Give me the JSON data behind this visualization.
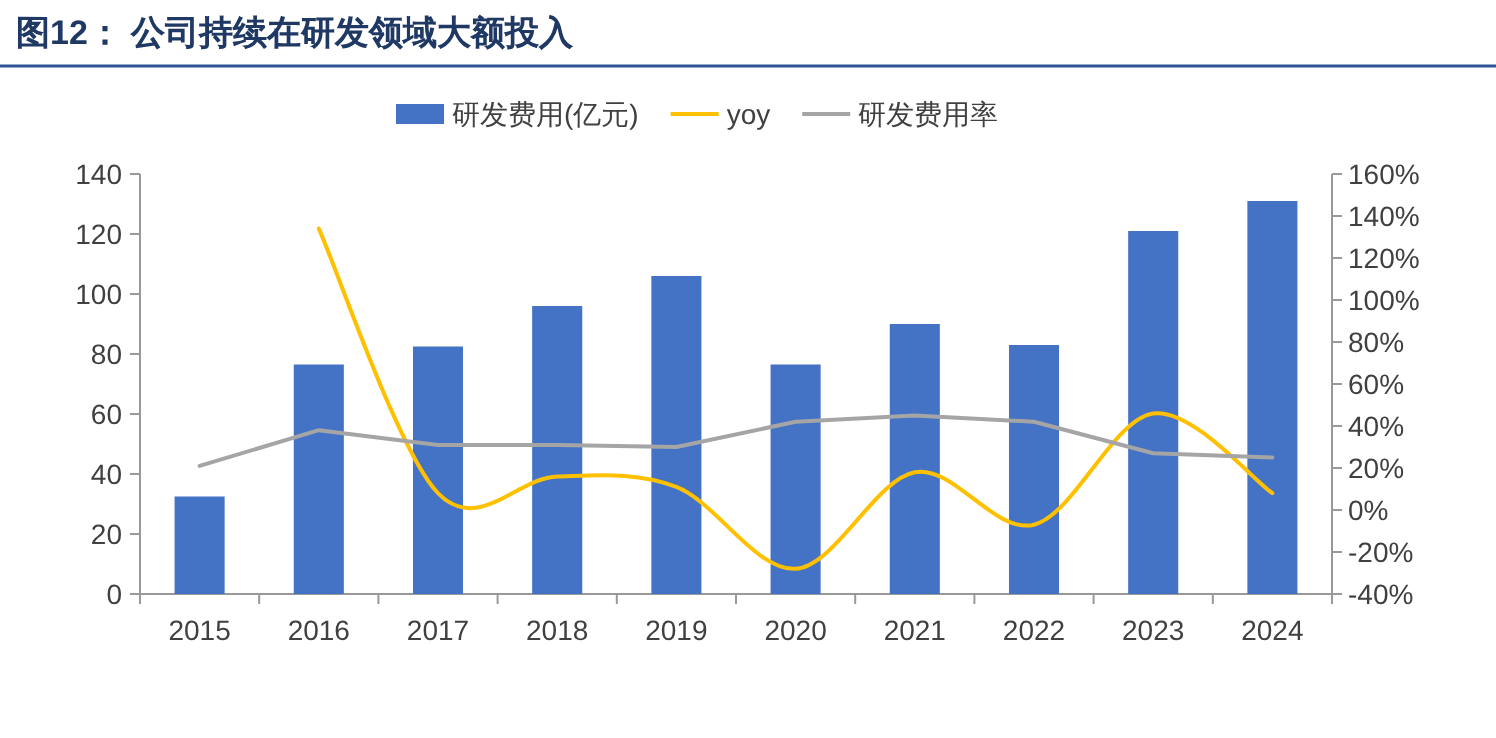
{
  "chart_data": {
    "type": "bar",
    "title": "图12：  公司持续在研发领域大额投入",
    "categories": [
      "2015",
      "2016",
      "2017",
      "2018",
      "2019",
      "2020",
      "2021",
      "2022",
      "2023",
      "2024"
    ],
    "series": [
      {
        "name": "研发费用(亿元)",
        "color": "#4472c4",
        "values": [
          32.5,
          76.5,
          82.5,
          96,
          106,
          76.5,
          90,
          83,
          121,
          131
        ]
      },
      {
        "name": "yoy",
        "type": "line",
        "axis": "y2",
        "color": "#ffc000",
        "values": [
          null,
          134,
          8,
          16,
          11,
          -28,
          18,
          -7,
          46,
          8
        ]
      },
      {
        "name": "研发费用率",
        "type": "line",
        "axis": "y2",
        "color": "#a5a5a5",
        "values": [
          21,
          38,
          31,
          31,
          30,
          42,
          45,
          42,
          27,
          25
        ]
      }
    ],
    "ylim": [
      0,
      140
    ],
    "yticks": [
      0,
      20,
      40,
      60,
      80,
      100,
      120,
      140
    ],
    "y2lim": [
      -40,
      160
    ],
    "y2ticks": [
      {
        "value": -40,
        "label": "-40%"
      },
      {
        "value": -20,
        "label": "-20%"
      },
      {
        "value": 0,
        "label": "0%"
      },
      {
        "value": 20,
        "label": "20%"
      },
      {
        "value": 40,
        "label": "40%"
      },
      {
        "value": 60,
        "label": "60%"
      },
      {
        "value": 80,
        "label": "80%"
      },
      {
        "value": 100,
        "label": "100%"
      },
      {
        "value": 120,
        "label": "120%"
      },
      {
        "value": 140,
        "label": "140%"
      },
      {
        "value": 160,
        "label": "160%"
      }
    ],
    "legend": "top",
    "grid": false
  }
}
